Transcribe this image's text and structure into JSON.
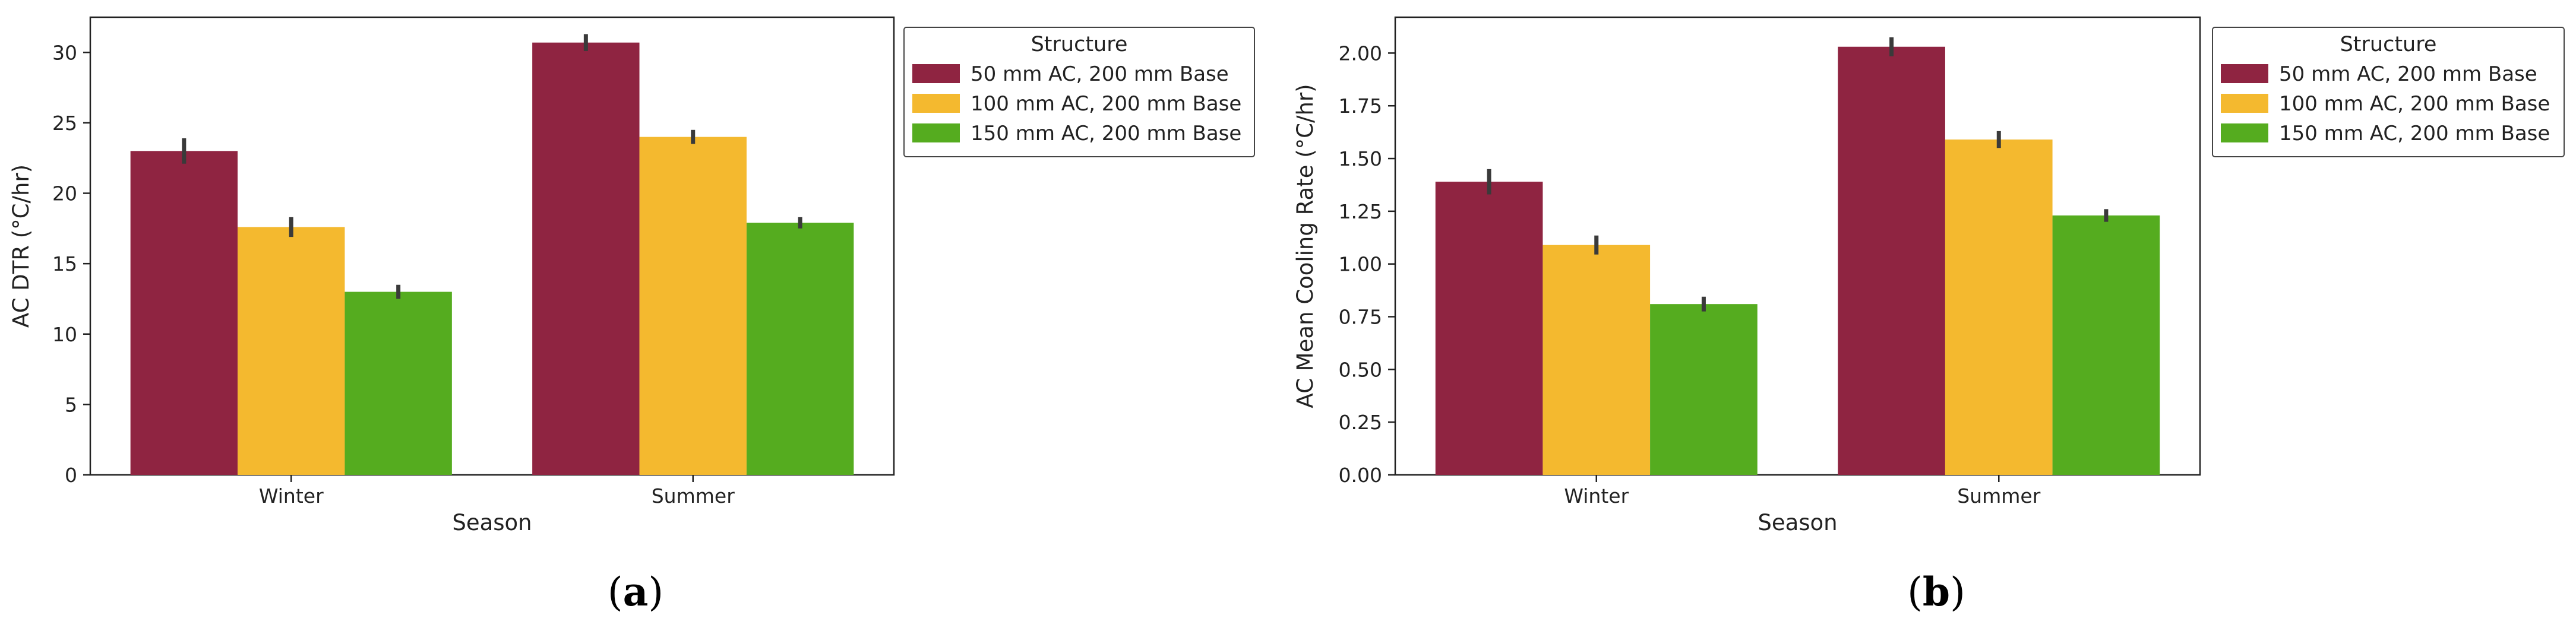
{
  "chart_data": [
    {
      "type": "bar",
      "categories": [
        "Winter",
        "Summer"
      ],
      "xlabel": "Season",
      "ylabel": "AC DTR (°C/hr)",
      "ylim": [
        0,
        32.5
      ],
      "yticks": [
        0,
        5,
        10,
        15,
        20,
        25,
        30
      ],
      "legend_title": "Structure",
      "legend_position": "outside-right",
      "caption": "(a)",
      "series": [
        {
          "name": "50 mm AC, 200 mm Base",
          "color": "#8f2441",
          "values": [
            23.0,
            30.7
          ],
          "err": [
            0.9,
            0.6
          ]
        },
        {
          "name": "100 mm AC, 200 mm Base",
          "color": "#f4b92f",
          "values": [
            17.6,
            24.0
          ],
          "err": [
            0.7,
            0.5
          ]
        },
        {
          "name": "150 mm AC, 200 mm Base",
          "color": "#55ac1f",
          "values": [
            13.0,
            17.9
          ],
          "err": [
            0.5,
            0.4
          ]
        }
      ]
    },
    {
      "type": "bar",
      "categories": [
        "Winter",
        "Summer"
      ],
      "xlabel": "Season",
      "ylabel": "AC Mean Cooling Rate (°C/hr)",
      "ylim": [
        0,
        2.17
      ],
      "yticks": [
        0.0,
        0.25,
        0.5,
        0.75,
        1.0,
        1.25,
        1.5,
        1.75,
        2.0
      ],
      "ytick_labels": [
        "0.00",
        "0.25",
        "0.50",
        "0.75",
        "1.00",
        "1.25",
        "1.50",
        "1.75",
        "2.00"
      ],
      "legend_title": "Structure",
      "legend_position": "outside-right",
      "caption": "(b)",
      "series": [
        {
          "name": "50 mm AC, 200 mm Base",
          "color": "#8f2441",
          "values": [
            1.39,
            2.03
          ],
          "err": [
            0.06,
            0.045
          ]
        },
        {
          "name": "100 mm AC, 200 mm Base",
          "color": "#f4b92f",
          "values": [
            1.09,
            1.59
          ],
          "err": [
            0.045,
            0.04
          ]
        },
        {
          "name": "150 mm AC, 200 mm Base",
          "color": "#55ac1f",
          "values": [
            0.81,
            1.23
          ],
          "err": [
            0.035,
            0.03
          ]
        }
      ]
    }
  ]
}
